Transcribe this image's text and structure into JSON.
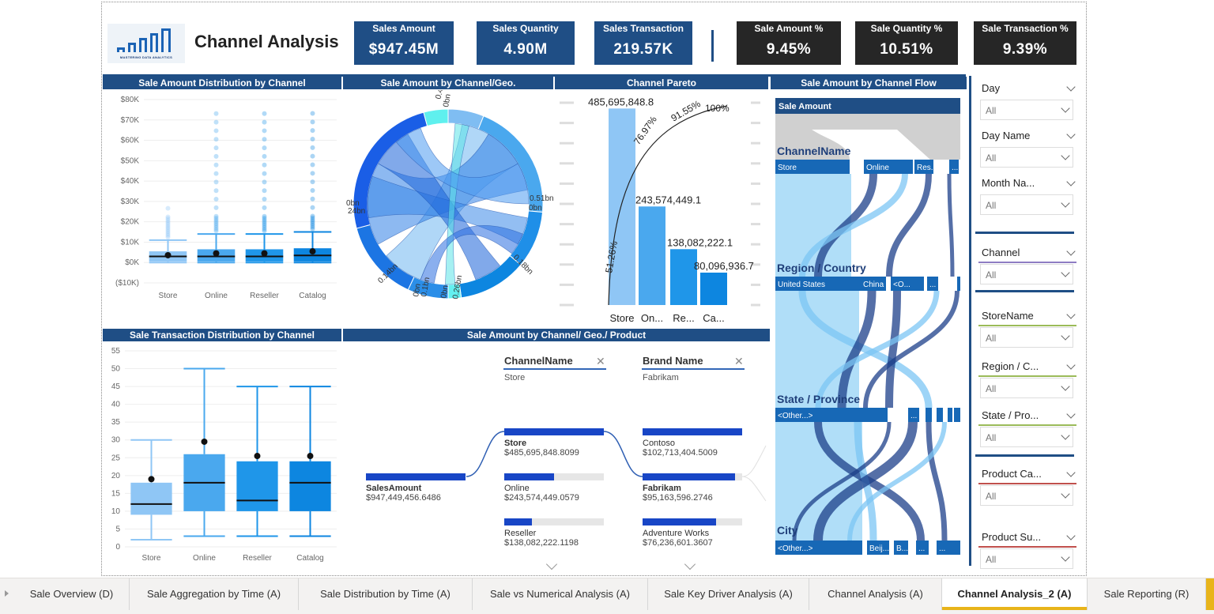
{
  "report": {
    "title": "Channel Analysis",
    "logo_text": "MASTERING DATA ANALYTICS"
  },
  "kpis": [
    {
      "label": "Sales Amount",
      "value": "$947.45M",
      "style": "blue"
    },
    {
      "label": "Sales Quantity",
      "value": "4.90M",
      "style": "blue"
    },
    {
      "label": "Sales Transaction",
      "value": "219.57K",
      "style": "blue"
    },
    {
      "label": "Sale Amount %",
      "value": "9.45%",
      "style": "dark"
    },
    {
      "label": "Sale Quantity %",
      "value": "10.51%",
      "style": "dark"
    },
    {
      "label": "Sale Transaction %",
      "value": "9.39%",
      "style": "dark"
    }
  ],
  "chart_titles": {
    "amount_dist": "Sale Amount Distribution by Channel",
    "chord": "Sale Amount by Channel/Geo.",
    "pareto": "Channel Pareto",
    "flow": "Sale Amount by Channel Flow",
    "trans_dist": "Sale Transaction Distribution by Channel",
    "decomp": "Sale Amount by Channel/ Geo./ Product"
  },
  "chart_data": [
    {
      "type": "box",
      "title": "Sale Amount Distribution by Channel",
      "categories": [
        "Store",
        "Online",
        "Reseller",
        "Catalog"
      ],
      "y_ticks": [
        "$80K",
        "$70K",
        "$60K",
        "$50K",
        "$40K",
        "$30K",
        "$20K",
        "$10K",
        "$0K",
        "($10K)"
      ],
      "ylim": [
        -10000,
        80000
      ],
      "boxes": [
        {
          "q1": 500,
          "median": 3000,
          "q3": 5500,
          "whisker_low": 0,
          "whisker_high": 11000,
          "mean": 3600,
          "outlier_max": 30000
        },
        {
          "q1": 500,
          "median": 3000,
          "q3": 6500,
          "whisker_low": 0,
          "whisker_high": 14000,
          "mean": 4500,
          "outlier_max": 75000
        },
        {
          "q1": 500,
          "median": 3000,
          "q3": 6500,
          "whisker_low": 0,
          "whisker_high": 14000,
          "mean": 4500,
          "outlier_max": 75000
        },
        {
          "q1": 500,
          "median": 3500,
          "q3": 7000,
          "whisker_low": 0,
          "whisker_high": 15000,
          "mean": 5500,
          "outlier_max": 75000
        }
      ]
    },
    {
      "type": "chord",
      "title": "Sale Amount by Channel/Geo.",
      "labels": [
        "0.4bn",
        "0bn",
        "0.51bn",
        "0bn",
        "0.18bn",
        "0.26bn",
        "0bn",
        "0.1bn",
        "0bn",
        "0.14bn",
        "24bn",
        "0bn"
      ]
    },
    {
      "type": "pareto",
      "title": "Channel Pareto",
      "categories": [
        "Store",
        "On...",
        "Re...",
        "Ca..."
      ],
      "values": [
        485695848.8,
        243574449.1,
        138082222.1,
        80096936.7
      ],
      "value_labels": [
        "485,695,848.8",
        "243,574,449.1",
        "138,082,222.1",
        "80,096,936.7"
      ],
      "cumulative_labels": [
        "51.26%",
        "76.97%",
        "91.55%",
        "100%"
      ],
      "cumulative": [
        51.26,
        76.97,
        91.55,
        100
      ]
    },
    {
      "type": "sankey",
      "title": "Sale Amount by Channel Flow",
      "root": "Sale Amount",
      "levels": [
        {
          "name": "ChannelName",
          "nodes": [
            "Store",
            "Online",
            "Res...",
            "..."
          ]
        },
        {
          "name": "Region / Country",
          "nodes": [
            "United States",
            "China",
            "<O...",
            "...",
            "..."
          ]
        },
        {
          "name": "State / Province",
          "nodes": [
            "<Other...>",
            "...",
            "..."
          ]
        },
        {
          "name": "City",
          "nodes": [
            "<Other...>",
            "Beij...",
            "B...",
            "...",
            "..."
          ]
        }
      ]
    },
    {
      "type": "box",
      "title": "Sale Transaction Distribution by Channel",
      "categories": [
        "Store",
        "Online",
        "Reseller",
        "Catalog"
      ],
      "y_ticks": [
        "55",
        "50",
        "45",
        "40",
        "35",
        "30",
        "25",
        "20",
        "15",
        "10",
        "5",
        "0"
      ],
      "ylim": [
        0,
        55
      ],
      "boxes": [
        {
          "q1": 9,
          "median": 12,
          "q3": 18,
          "whisker_low": 2,
          "whisker_high": 30,
          "mean": 19
        },
        {
          "q1": 10,
          "median": 18,
          "q3": 26,
          "whisker_low": 3,
          "whisker_high": 50,
          "mean": 29.5
        },
        {
          "q1": 10,
          "median": 13,
          "q3": 24,
          "whisker_low": 3,
          "whisker_high": 45,
          "mean": 25.5
        },
        {
          "q1": 10,
          "median": 18,
          "q3": 24,
          "whisker_low": 3,
          "whisker_high": 45,
          "mean": 25.5
        }
      ]
    }
  ],
  "decomp": {
    "headers": [
      {
        "label": "ChannelName",
        "sub": "Store"
      },
      {
        "label": "Brand Name",
        "sub": "Fabrikam"
      }
    ],
    "root": {
      "name": "SalesAmount",
      "value": "$947,449,456.6486"
    },
    "channels": [
      {
        "name": "Store",
        "value": "$485,695,848.8099",
        "fraction": 1.0,
        "selected": true
      },
      {
        "name": "Online",
        "value": "$243,574,449.0579",
        "fraction": 0.5,
        "selected": false
      },
      {
        "name": "Reseller",
        "value": "$138,082,222.1198",
        "fraction": 0.28,
        "selected": false
      }
    ],
    "brands": [
      {
        "name": "Contoso",
        "value": "$102,713,404.5009",
        "fraction": 1.0,
        "selected": false
      },
      {
        "name": "Fabrikam",
        "value": "$95,163,596.2746",
        "fraction": 0.93,
        "selected": true
      },
      {
        "name": "Adventure Works",
        "value": "$76,236,601.3607",
        "fraction": 0.74,
        "selected": false
      }
    ]
  },
  "slicers": [
    {
      "title": "Day",
      "value": "All"
    },
    {
      "title": "Day Name",
      "value": "All"
    },
    {
      "title": "Month Na...",
      "value": "All"
    },
    {
      "title": "Channel",
      "value": "All",
      "underline": "#8e7cc3"
    },
    {
      "title": "StoreName",
      "value": "All",
      "underline": "#9bbb59"
    },
    {
      "title": "Region / C...",
      "value": "All",
      "underline": "#9bbb59"
    },
    {
      "title": "State / Pro...",
      "value": "All",
      "underline": "#9bbb59"
    },
    {
      "title": "Product Ca...",
      "value": "All",
      "underline": "#c0504d"
    },
    {
      "title": "Product Su...",
      "value": "All",
      "underline": "#c0504d"
    }
  ],
  "tabs": [
    {
      "label": "Sale Overview (D)",
      "active": false
    },
    {
      "label": "Sale Aggregation by Time (A)",
      "active": false
    },
    {
      "label": "Sale Distribution by Time (A)",
      "active": false
    },
    {
      "label": "Sale vs Numerical Analysis (A)",
      "active": false
    },
    {
      "label": "Sale Key Driver Analysis (A)",
      "active": false
    },
    {
      "label": "Channel Analysis (A)",
      "active": false
    },
    {
      "label": "Channel Analysis_2 (A)",
      "active": true
    },
    {
      "label": "Sale Reporting (R)",
      "active": false
    }
  ],
  "colors": {
    "navy": "#1f4e85",
    "dark": "#262626",
    "accent_tab": "#e8b41a",
    "store": "#8fc6f5",
    "online": "#4aa8ee",
    "reseller": "#1f96e9",
    "catalog": "#0d86e0",
    "flow_dark": "#1c3f8a",
    "flow_light": "#7cc6f4"
  }
}
